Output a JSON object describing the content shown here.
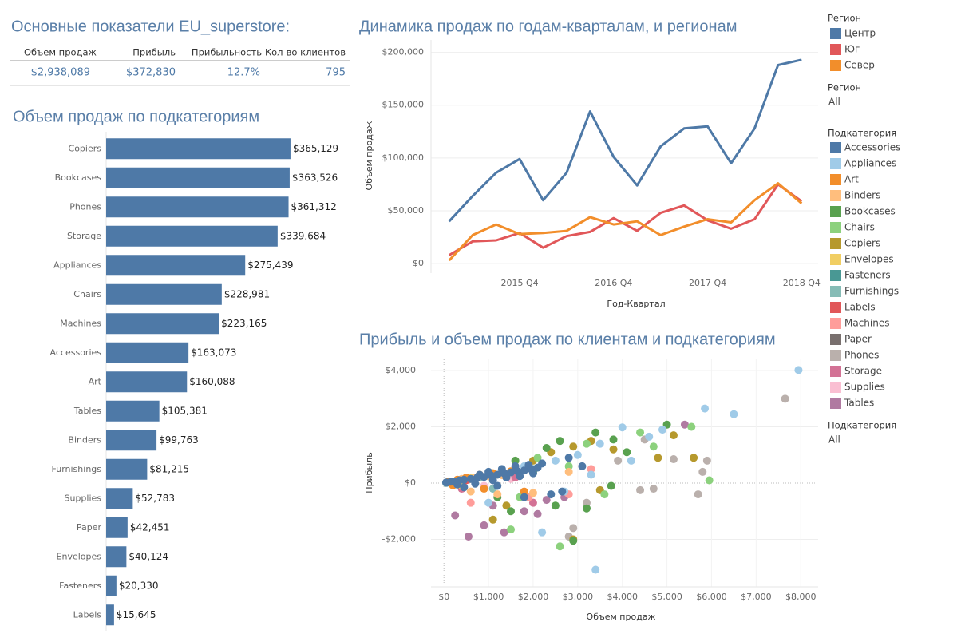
{
  "kpi": {
    "title": "Основные показатели EU_superstore:",
    "headers": [
      "Объем продаж",
      "Прибыль",
      "Прибыльность",
      "Кол-во клиентов"
    ],
    "values": [
      "$2,938,089",
      "$372,830",
      "12.7%",
      "795"
    ]
  },
  "filters": [
    {
      "title": "Регион",
      "value": "All"
    },
    {
      "title": "Подкатегория",
      "value": "All"
    }
  ],
  "chart_data": [
    {
      "type": "hbar",
      "title": "Объем продаж по подкатегориям",
      "color": "#4e79a7",
      "categories": [
        "Copiers",
        "Bookcases",
        "Phones",
        "Storage",
        "Appliances",
        "Chairs",
        "Machines",
        "Accessories",
        "Art",
        "Tables",
        "Binders",
        "Furnishings",
        "Supplies",
        "Paper",
        "Envelopes",
        "Fasteners",
        "Labels"
      ],
      "values": [
        365129,
        363526,
        361312,
        339684,
        275439,
        228981,
        223165,
        163073,
        160088,
        105381,
        99763,
        81215,
        52783,
        42451,
        40124,
        20330,
        15645
      ],
      "value_labels": [
        "$365,129",
        "$363,526",
        "$361,312",
        "$339,684",
        "$275,439",
        "$228,981",
        "$223,165",
        "$163,073",
        "$160,088",
        "$105,381",
        "$99,763",
        "$81,215",
        "$52,783",
        "$42,451",
        "$40,124",
        "$20,330",
        "$15,645"
      ],
      "xlim": [
        0,
        400000
      ]
    },
    {
      "type": "line",
      "title": "Динамика продаж по годам-кварталам, и регионам",
      "legend_title": "Регион",
      "xlabel": "Год-Квартал",
      "ylabel": "Объем продаж",
      "categories": [
        null,
        null,
        null,
        "2015 Q4",
        null,
        null,
        null,
        "2016 Q4",
        null,
        null,
        null,
        "2017 Q4",
        null,
        null,
        null,
        "2018 Q4"
      ],
      "series": [
        {
          "name": "Центр",
          "color": "#4e79a7",
          "values": [
            40000,
            64000,
            86000,
            99000,
            60000,
            86000,
            144000,
            101000,
            74000,
            111000,
            128000,
            130000,
            95000,
            128000,
            188000,
            193000
          ]
        },
        {
          "name": "Юг",
          "color": "#e15759",
          "values": [
            8000,
            21000,
            22000,
            29000,
            15000,
            26000,
            30000,
            43000,
            31000,
            48000,
            55000,
            41000,
            33000,
            42000,
            75000,
            59000
          ]
        },
        {
          "name": "Север",
          "color": "#f28e2b",
          "values": [
            3000,
            27000,
            37000,
            28000,
            29000,
            31000,
            44000,
            37000,
            40000,
            27000,
            35000,
            42000,
            39000,
            60000,
            76000,
            57000
          ]
        }
      ],
      "ylim": [
        -7500,
        208000
      ],
      "yticks": [
        {
          "value": 0,
          "label": "$0"
        },
        {
          "value": 50000,
          "label": "$50,000"
        },
        {
          "value": 100000,
          "label": "$100,000"
        },
        {
          "value": 150000,
          "label": "$150,000"
        },
        {
          "value": 200000,
          "label": "$200,000"
        }
      ],
      "grid": true
    },
    {
      "type": "scatter",
      "title": "Прибыль и объем продаж по клиентам и подкатегориям",
      "legend_title": "Подкатегория",
      "xlabel": "Объем продаж",
      "ylabel": "Прибыль",
      "xlim": [
        -290,
        8390
      ],
      "ylim": [
        -3690,
        4400
      ],
      "xticks": [
        {
          "value": 0,
          "label": "$0"
        },
        {
          "value": 1000,
          "label": "$1,000"
        },
        {
          "value": 2000,
          "label": "$2,000"
        },
        {
          "value": 3000,
          "label": "$3,000"
        },
        {
          "value": 4000,
          "label": "$4,000"
        },
        {
          "value": 5000,
          "label": "$5,000"
        },
        {
          "value": 6000,
          "label": "$6,000"
        },
        {
          "value": 7000,
          "label": "$7,000"
        },
        {
          "value": 8000,
          "label": "$8,000"
        }
      ],
      "yticks": [
        {
          "value": -2000,
          "label": "-$2,000"
        },
        {
          "value": 0,
          "label": "$0"
        },
        {
          "value": 2000,
          "label": "$2,000"
        },
        {
          "value": 4000,
          "label": "$4,000"
        }
      ],
      "series": [
        {
          "name": "Accessories",
          "color": "#4e79a7",
          "x": [
            50,
            150,
            250,
            350,
            450,
            600,
            750,
            900,
            1050,
            1200,
            1350,
            1500,
            1650,
            1800,
            1950,
            2100,
            300,
            700,
            1100,
            1400,
            1700,
            2000,
            800,
            1000,
            1300,
            1600,
            1900,
            2200,
            2400,
            2650,
            1800,
            3100,
            2800,
            450,
            1200
          ],
          "y": [
            20,
            50,
            60,
            100,
            120,
            150,
            200,
            220,
            280,
            300,
            350,
            380,
            420,
            450,
            500,
            550,
            -50,
            -20,
            100,
            200,
            250,
            350,
            300,
            400,
            500,
            600,
            650,
            700,
            -400,
            -300,
            -500,
            600,
            900,
            -150,
            -100
          ]
        },
        {
          "name": "Appliances",
          "color": "#a0cbe8",
          "x": [
            7950,
            5850,
            6500,
            3400,
            4000,
            4600,
            4900,
            3300,
            2200,
            3000,
            3500,
            2500,
            1800,
            4200,
            1000,
            2700
          ],
          "y": [
            4020,
            2650,
            2450,
            -3080,
            1980,
            1650,
            1900,
            300,
            -1750,
            1000,
            1400,
            800,
            600,
            800,
            -700,
            -300
          ]
        },
        {
          "name": "Art",
          "color": "#f28e2b",
          "x": [
            100,
            300,
            500,
            800,
            1100,
            1500,
            200,
            900,
            1800
          ],
          "y": [
            50,
            120,
            200,
            300,
            350,
            420,
            -80,
            -200,
            -300
          ]
        },
        {
          "name": "Binders",
          "color": "#ffbe7d",
          "x": [
            150,
            400,
            700,
            1000,
            1300,
            600,
            1200,
            2000,
            2800
          ],
          "y": [
            40,
            150,
            200,
            250,
            280,
            -300,
            -400,
            -350,
            400
          ]
        },
        {
          "name": "Bookcases",
          "color": "#59a14f",
          "x": [
            5000,
            3800,
            3750,
            2900,
            4100,
            3400,
            2300,
            1600,
            1200,
            2500,
            3200,
            2000,
            1500,
            2600
          ],
          "y": [
            2080,
            1550,
            -100,
            -2050,
            1100,
            1800,
            1250,
            800,
            -500,
            -800,
            -900,
            400,
            -1000,
            1500
          ]
        },
        {
          "name": "Chairs",
          "color": "#8cd17d",
          "x": [
            5950,
            5550,
            2600,
            1500,
            3200,
            4400,
            2800,
            2100,
            1700,
            3600,
            4700
          ],
          "y": [
            100,
            2000,
            -2250,
            -1650,
            1400,
            1800,
            600,
            900,
            -500,
            -400,
            1300
          ]
        },
        {
          "name": "Copiers",
          "color": "#b6992d",
          "x": [
            5600,
            5150,
            4800,
            3800,
            3300,
            2900,
            2400,
            2000,
            1100,
            2900,
            3500,
            1400
          ],
          "y": [
            900,
            1700,
            900,
            1200,
            1500,
            1300,
            1100,
            800,
            -1300,
            -2000,
            -250,
            -800
          ]
        },
        {
          "name": "Envelopes",
          "color": "#f1ce63",
          "x": [
            200,
            600,
            1200,
            400
          ],
          "y": [
            60,
            180,
            300,
            -100
          ]
        },
        {
          "name": "Fasteners",
          "color": "#499894",
          "x": [
            50,
            150,
            300
          ],
          "y": [
            10,
            20,
            40
          ]
        },
        {
          "name": "Furnishings",
          "color": "#86bcb6",
          "x": [
            300,
            800,
            1400,
            2000,
            1100
          ],
          "y": [
            80,
            200,
            300,
            500,
            -200
          ]
        },
        {
          "name": "Labels",
          "color": "#e15759",
          "x": [
            80,
            250,
            500
          ],
          "y": [
            20,
            60,
            100
          ]
        },
        {
          "name": "Machines",
          "color": "#ff9d9a",
          "x": [
            600,
            1900,
            2800,
            1300,
            3300
          ],
          "y": [
            -700,
            -500,
            -400,
            300,
            500
          ]
        },
        {
          "name": "Paper",
          "color": "#79706e",
          "x": [
            100,
            300,
            600
          ],
          "y": [
            30,
            80,
            150
          ]
        },
        {
          "name": "Phones",
          "color": "#bab0ac",
          "x": [
            7650,
            5700,
            5800,
            5150,
            4700,
            4500,
            3900,
            2900,
            2800,
            3200,
            4400,
            5900
          ],
          "y": [
            3000,
            -400,
            400,
            850,
            -200,
            1550,
            800,
            -1600,
            -1900,
            -700,
            -250,
            800
          ]
        },
        {
          "name": "Storage",
          "color": "#d37295",
          "x": [
            400,
            1200,
            2000,
            1600
          ],
          "y": [
            -200,
            -500,
            -700,
            200
          ]
        },
        {
          "name": "Supplies",
          "color": "#fabfd2",
          "x": [
            300,
            900,
            1500
          ],
          "y": [
            50,
            -100,
            150
          ]
        },
        {
          "name": "Tables",
          "color": "#b07aa1",
          "x": [
            5400,
            550,
            1350,
            2100,
            900,
            1800,
            2700,
            2300,
            1100,
            250
          ],
          "y": [
            2080,
            -1900,
            -1750,
            -1100,
            -1500,
            -1000,
            -500,
            -600,
            -800,
            -1150
          ]
        }
      ],
      "grid": true
    }
  ]
}
